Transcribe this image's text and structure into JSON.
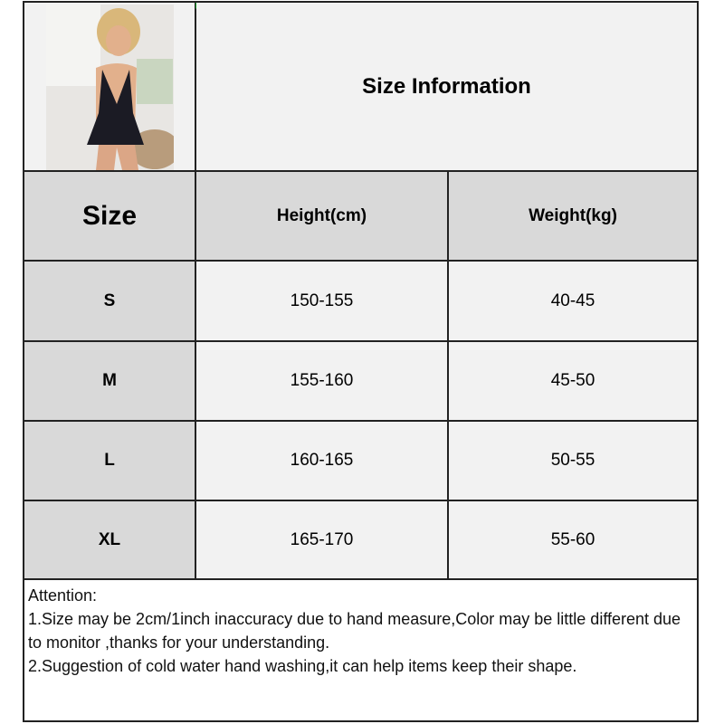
{
  "title": "Size Information",
  "table": {
    "headers": [
      "Size",
      "Height(cm)",
      "Weight(kg)"
    ],
    "rows": [
      {
        "size": "S",
        "height": "150-155",
        "weight": "40-45"
      },
      {
        "size": "M",
        "height": "155-160",
        "weight": "45-50"
      },
      {
        "size": "L",
        "height": "160-165",
        "weight": "50-55"
      },
      {
        "size": "XL",
        "height": "165-170",
        "weight": "55-60"
      }
    ]
  },
  "notes": {
    "heading": "Attention:",
    "lines": [
      "1.Size may be 2cm/1inch inaccuracy due to hand measure,Color may be little different due to monitor ,thanks for your understanding.",
      "2.Suggestion of cold water hand washing,it can help items keep their shape."
    ]
  },
  "colors": {
    "header_bg": "#d9d9d9",
    "cell_bg": "#f2f2f2",
    "border": "#222222"
  }
}
